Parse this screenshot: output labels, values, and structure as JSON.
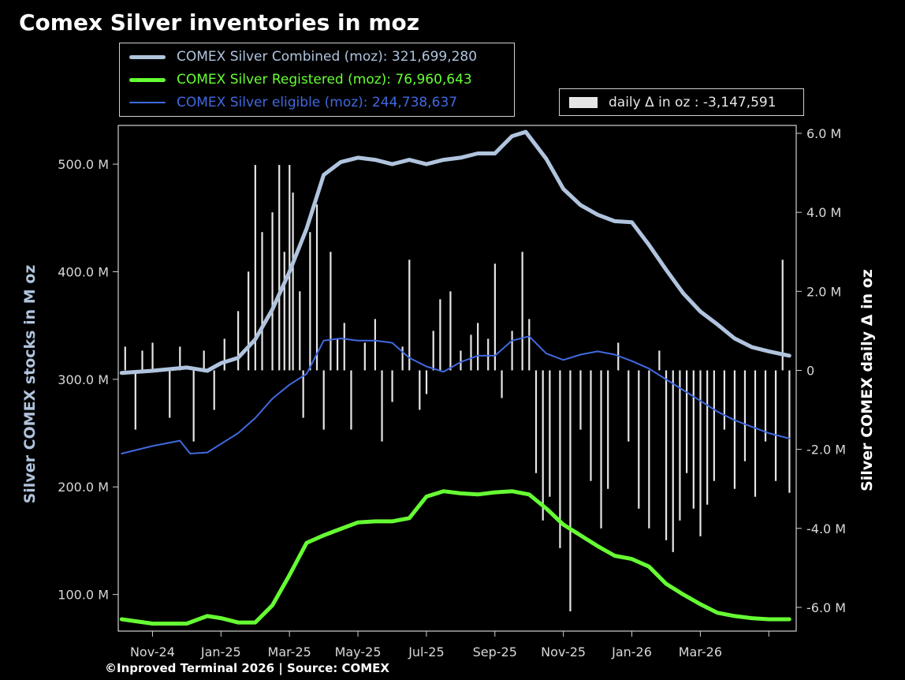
{
  "title": "Comex Silver inventories in moz",
  "footer": "©Inproved Terminal 2026 | Source: COMEX",
  "legend": {
    "combined": "COMEX Silver Combined (moz): 321,699,280",
    "registered": "COMEX Silver Registered (moz): 76,960,643",
    "eligible": "COMEX Silver eligible (moz): 244,738,637",
    "daily": "daily Δ in oz : -3,147,591"
  },
  "colors": {
    "background": "#000000",
    "combined": "#b0c4de",
    "registered": "#66ff33",
    "eligible": "#4169e1",
    "daily": "#e6e6e6",
    "axis": "#d0d0d0"
  },
  "chart_data": {
    "type": "line",
    "title": "Comex Silver inventories in moz",
    "ylabel": "Silver COMEX stocks in M oz",
    "y2label": "Silver COMEX daily Δ in oz",
    "ylim": [
      66,
      536
    ],
    "y2lim": [
      -6.6,
      6.2
    ],
    "yticks": [
      100,
      200,
      300,
      400,
      500
    ],
    "ytick_labels": [
      "100.0 M",
      "200.0 M",
      "300.0 M",
      "400.0 M",
      "500.0 M"
    ],
    "y2ticks": [
      -6,
      -4,
      -2,
      0,
      2,
      4,
      6
    ],
    "y2tick_labels": [
      "-6.0 M",
      "-4.0 M",
      "-2.0 M",
      "0",
      "2.0 M",
      "4.0 M",
      "6.0 M"
    ],
    "xlim": [
      0,
      19.8
    ],
    "xticks": [
      1,
      3,
      5,
      7,
      9,
      11,
      13,
      15,
      17,
      19
    ],
    "xtick_labels": [
      "Nov-24",
      "Jan-25",
      "Mar-25",
      "May-25",
      "Jul-25",
      "Sep-25",
      "Nov-25",
      "Jan-26",
      "Mar-26"
    ],
    "xtick_values": [
      1,
      3,
      5,
      7,
      9,
      11,
      13,
      15,
      17
    ],
    "x_unit": "months since Oct-24 (Nov-24 = 1)",
    "grid": false,
    "legend_position": "top",
    "series": [
      {
        "name": "COMEX Silver Combined (moz)",
        "axis": "left",
        "x": [
          0.1,
          1.0,
          2.0,
          2.6,
          3.0,
          3.5,
          4.0,
          4.5,
          5.0,
          5.5,
          6.0,
          6.5,
          7.0,
          7.5,
          8.0,
          8.5,
          9.0,
          9.5,
          10.0,
          10.5,
          11.0,
          11.5,
          11.9,
          12.5,
          13.0,
          13.5,
          14.0,
          14.5,
          15.0,
          15.5,
          16.0,
          16.5,
          17.0,
          17.5,
          18.0,
          18.5,
          19.0,
          19.6
        ],
        "y": [
          306,
          308,
          311,
          308,
          315,
          320,
          337,
          365,
          400,
          440,
          490,
          502,
          506,
          504,
          500,
          504,
          500,
          504,
          506,
          510,
          510,
          526,
          530,
          505,
          477,
          462,
          453,
          447,
          446,
          425,
          402,
          380,
          363,
          351,
          338,
          330,
          326,
          322
        ]
      },
      {
        "name": "COMEX Silver Registered (moz)",
        "axis": "left",
        "x": [
          0.1,
          1.0,
          2.0,
          2.6,
          3.0,
          3.5,
          4.0,
          4.5,
          5.0,
          5.5,
          6.0,
          6.5,
          7.0,
          7.5,
          8.0,
          8.5,
          9.0,
          9.5,
          10.0,
          10.5,
          11.0,
          11.5,
          12.0,
          12.5,
          13.0,
          13.5,
          14.0,
          14.5,
          15.0,
          15.5,
          16.0,
          16.5,
          17.0,
          17.5,
          18.0,
          18.5,
          19.0,
          19.6
        ],
        "y": [
          77,
          73,
          73,
          80,
          78,
          74,
          74,
          90,
          118,
          148,
          155,
          161,
          167,
          168,
          168,
          171,
          191,
          196,
          194,
          193,
          195,
          196,
          193,
          180,
          165,
          155,
          145,
          136,
          133,
          126,
          110,
          100,
          91,
          83,
          80,
          78,
          77,
          77
        ]
      },
      {
        "name": "COMEX Silver eligible (moz)",
        "axis": "left",
        "x": [
          0.1,
          1.0,
          1.8,
          2.1,
          2.6,
          3.0,
          3.5,
          4.0,
          4.5,
          5.0,
          5.5,
          6.0,
          6.5,
          7.0,
          7.5,
          8.0,
          8.5,
          9.0,
          9.5,
          10.0,
          10.5,
          11.0,
          11.5,
          12.0,
          12.5,
          13.0,
          13.5,
          14.0,
          14.5,
          15.0,
          15.5,
          16.0,
          16.5,
          17.0,
          17.5,
          18.0,
          18.5,
          19.0,
          19.6
        ],
        "y": [
          231,
          238,
          243,
          231,
          232,
          240,
          250,
          264,
          282,
          295,
          305,
          336,
          338,
          336,
          336,
          334,
          320,
          312,
          307,
          316,
          322,
          322,
          336,
          340,
          324,
          318,
          323,
          326,
          323,
          317,
          310,
          300,
          290,
          280,
          270,
          262,
          256,
          250,
          245
        ]
      },
      {
        "name": "daily Δ in oz",
        "type": "bar",
        "axis": "right",
        "x": [
          0.2,
          0.5,
          0.7,
          1.0,
          1.5,
          1.8,
          2.2,
          2.5,
          2.8,
          3.1,
          3.5,
          3.8,
          4.0,
          4.2,
          4.5,
          4.7,
          4.85,
          5.0,
          5.1,
          5.3,
          5.4,
          5.6,
          5.8,
          6.0,
          6.2,
          6.4,
          6.6,
          6.8,
          7.2,
          7.5,
          7.7,
          8.0,
          8.3,
          8.5,
          8.8,
          9.0,
          9.2,
          9.4,
          9.7,
          10.0,
          10.3,
          10.5,
          10.8,
          11.0,
          11.2,
          11.5,
          11.8,
          12.0,
          12.2,
          12.4,
          12.6,
          12.9,
          13.2,
          13.5,
          13.8,
          14.1,
          14.3,
          14.6,
          14.9,
          15.2,
          15.5,
          15.8,
          16.0,
          16.2,
          16.4,
          16.6,
          16.8,
          17.0,
          17.2,
          17.4,
          17.7,
          18.0,
          18.3,
          18.6,
          18.9,
          19.2,
          19.4,
          19.6
        ],
        "y": [
          0.6,
          -1.5,
          0.5,
          0.7,
          -1.2,
          0.6,
          -1.8,
          0.5,
          -1.0,
          0.8,
          1.5,
          2.5,
          5.2,
          3.5,
          4.0,
          5.2,
          3.0,
          5.2,
          4.5,
          2.0,
          -1.2,
          3.5,
          4.2,
          -1.5,
          3.0,
          0.8,
          1.2,
          -1.5,
          0.7,
          1.3,
          -1.8,
          -0.8,
          0.6,
          2.8,
          -1.0,
          -0.6,
          1.0,
          1.8,
          2.0,
          0.5,
          0.9,
          1.2,
          0.8,
          2.7,
          -0.7,
          1.0,
          3.0,
          1.3,
          -2.6,
          -3.8,
          -3.2,
          -4.5,
          -6.1,
          -1.5,
          -2.8,
          -4.0,
          -3.0,
          0.7,
          -1.8,
          -3.5,
          -4.0,
          0.5,
          -4.3,
          -4.6,
          -3.8,
          -2.6,
          -3.5,
          -4.2,
          -3.4,
          -2.8,
          -1.5,
          -3.0,
          -2.3,
          -3.2,
          -1.8,
          -2.8,
          2.8,
          -3.1
        ]
      }
    ]
  }
}
